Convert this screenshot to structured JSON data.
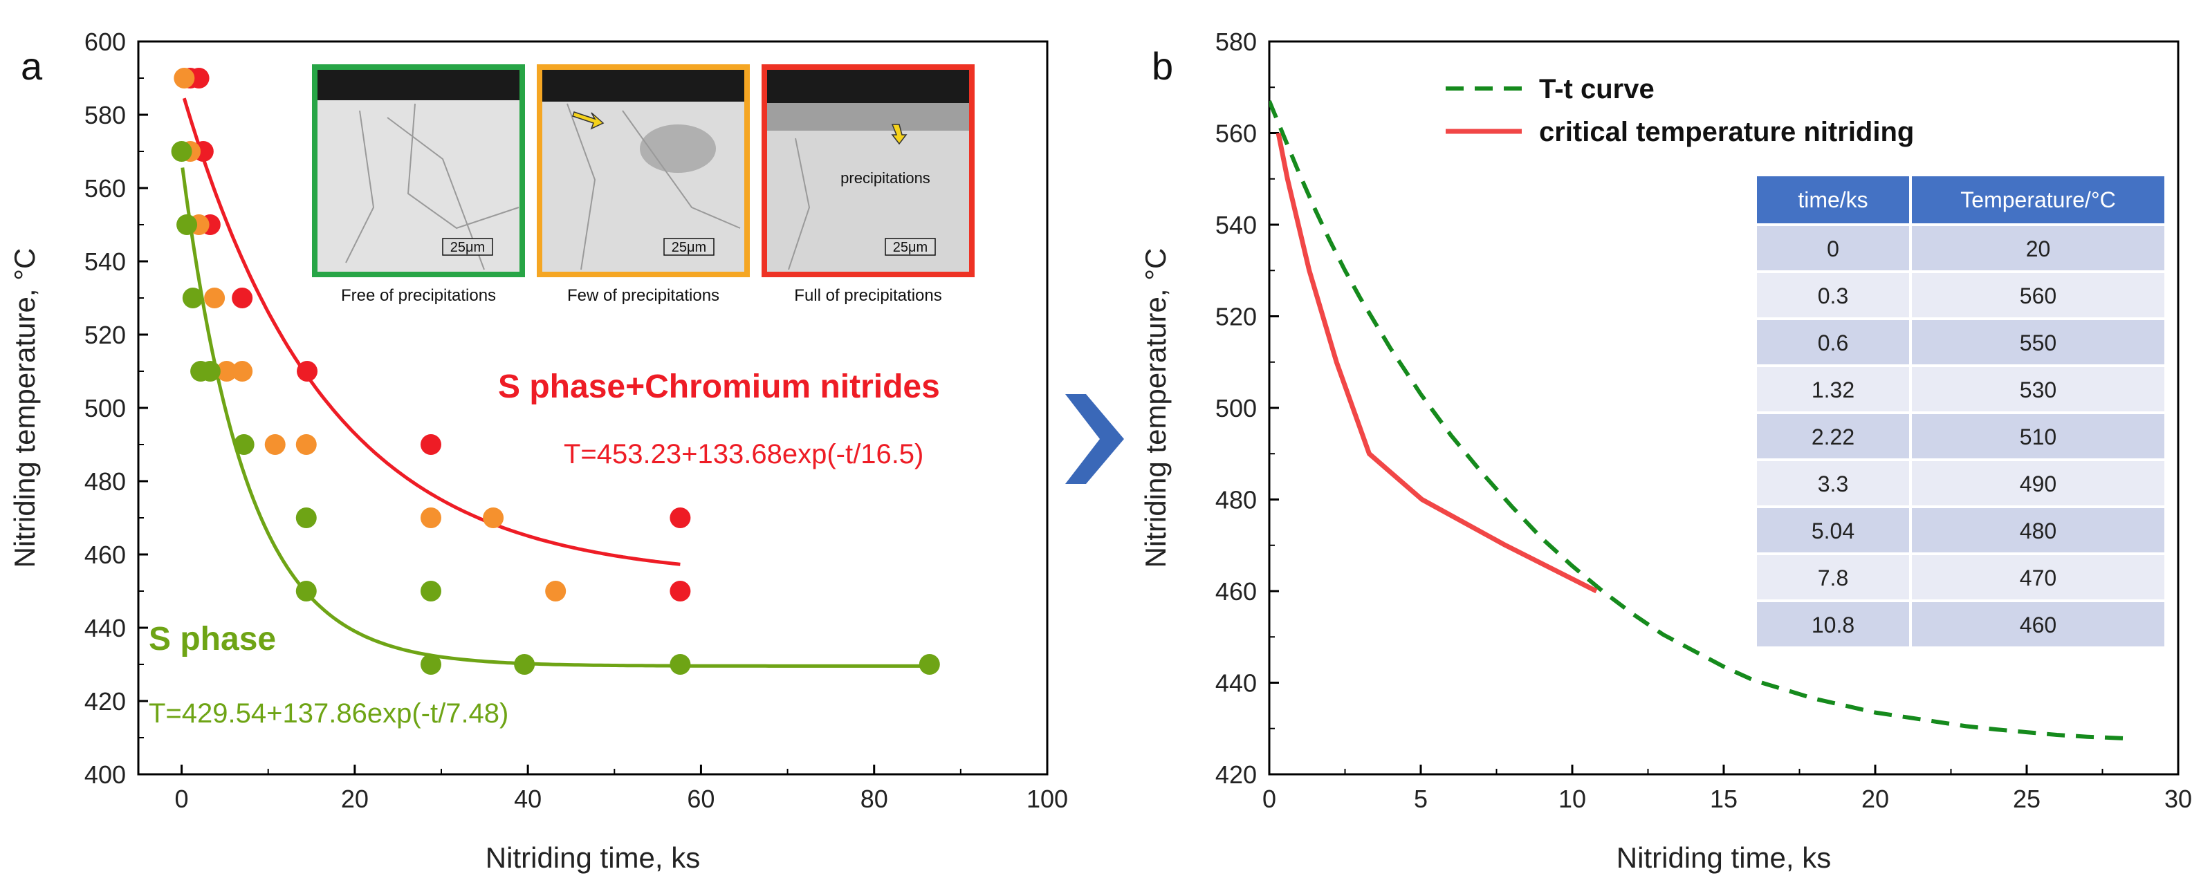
{
  "chart_data": [
    {
      "type": "scatter",
      "panel_label": "a",
      "xlabel": "Nitriding time, ks",
      "ylabel": "Nitriding temperature, °C",
      "xlim": [
        -5,
        100
      ],
      "ylim": [
        400,
        600
      ],
      "xticks": [
        0,
        20,
        40,
        60,
        80,
        100
      ],
      "yticks": [
        400,
        420,
        440,
        460,
        480,
        500,
        520,
        540,
        560,
        580,
        600
      ],
      "colors": {
        "red": "#ee1c25",
        "orange": "#f5912e",
        "green": "#6ea415"
      },
      "series": [
        {
          "name": "Full of precipitations",
          "color": "#ee1c25",
          "points": [
            [
              1,
              590
            ],
            [
              2,
              590
            ],
            [
              2.5,
              570
            ],
            [
              3.3,
              550
            ],
            [
              7,
              530
            ],
            [
              14.5,
              510
            ],
            [
              28.8,
              490
            ],
            [
              57.6,
              470
            ],
            [
              57.6,
              450
            ]
          ]
        },
        {
          "name": "Few of precipitations",
          "color": "#f5912e",
          "points": [
            [
              0.3,
              590
            ],
            [
              1,
              570
            ],
            [
              2,
              550
            ],
            [
              3.8,
              530
            ],
            [
              5.2,
              510
            ],
            [
              7,
              510
            ],
            [
              10.8,
              490
            ],
            [
              14.4,
              490
            ],
            [
              28.8,
              470
            ],
            [
              36,
              470
            ],
            [
              43.2,
              450
            ]
          ]
        },
        {
          "name": "Free of precipitations",
          "color": "#6ea415",
          "points": [
            [
              0,
              570
            ],
            [
              0.6,
              550
            ],
            [
              1.3,
              530
            ],
            [
              2.2,
              510
            ],
            [
              3.3,
              510
            ],
            [
              7.2,
              490
            ],
            [
              14.4,
              470
            ],
            [
              14.4,
              450
            ],
            [
              28.8,
              450
            ],
            [
              28.8,
              430
            ],
            [
              39.6,
              430
            ],
            [
              57.6,
              430
            ],
            [
              86.4,
              430
            ]
          ]
        }
      ],
      "fits": [
        {
          "name": "S phase+Chromium nitrides",
          "equation": "T=453.23+133.68exp(-t/16.5)",
          "a": 453.23,
          "b": 133.68,
          "tau": 16.5,
          "t_range": [
            0.3,
            57.6
          ],
          "color": "#ee1c25"
        },
        {
          "name": "S phase",
          "equation": "T=429.54+137.86exp(-t/7.48)",
          "a": 429.54,
          "b": 137.86,
          "tau": 7.48,
          "t_range": [
            0.1,
            86.4
          ],
          "color": "#6ea415"
        }
      ],
      "inset": {
        "images": [
          {
            "caption": "Free of precipitations",
            "scale": "25μm",
            "border": "#27a546"
          },
          {
            "caption": "Few of precipitations",
            "scale": "25μm",
            "border": "#f5a623"
          },
          {
            "caption": "Full of precipitations",
            "scale": "25μm",
            "border": "#ee3224",
            "note": "precipitations"
          }
        ]
      }
    },
    {
      "type": "line",
      "panel_label": "b",
      "xlabel": "Nitriding time, ks",
      "ylabel": "Nitriding temperature, °C",
      "xlim": [
        0,
        30
      ],
      "ylim": [
        420,
        580
      ],
      "xticks": [
        0,
        5,
        10,
        15,
        20,
        25,
        30
      ],
      "yticks": [
        420,
        440,
        460,
        480,
        500,
        520,
        540,
        560,
        580
      ],
      "series": [
        {
          "name": "T-t curve",
          "style": "dashed",
          "color": "#158a1c",
          "x": [
            0,
            0.5,
            1,
            1.5,
            2,
            2.5,
            3,
            3.5,
            4,
            5,
            6,
            7,
            8,
            9,
            10,
            11,
            12,
            13,
            14,
            15,
            16,
            17,
            18,
            19,
            20,
            21,
            22,
            23,
            24,
            25,
            26,
            27,
            28.4
          ],
          "y": [
            567,
            559,
            551,
            543.5,
            536.5,
            530,
            524,
            518.5,
            513,
            503,
            494,
            486,
            478.5,
            471.5,
            465.5,
            460,
            455,
            450.5,
            447,
            443.5,
            440.5,
            438.5,
            436.5,
            435,
            433.5,
            432.5,
            431.5,
            430.5,
            429.8,
            429.2,
            428.6,
            428.2,
            427.8
          ]
        },
        {
          "name": "critical temperature nitriding",
          "style": "solid",
          "color": "#f14646",
          "x": [
            0.3,
            0.6,
            1.32,
            2.22,
            3.3,
            5.04,
            7.8,
            10.8
          ],
          "y": [
            560,
            550,
            530,
            510,
            490,
            480,
            470,
            460
          ]
        }
      ],
      "table": {
        "headers": [
          "time/ks",
          "Temperature/°C"
        ],
        "rows": [
          [
            "0",
            "20"
          ],
          [
            "0.3",
            "560"
          ],
          [
            "0.6",
            "550"
          ],
          [
            "1.32",
            "530"
          ],
          [
            "2.22",
            "510"
          ],
          [
            "3.3",
            "490"
          ],
          [
            "5.04",
            "480"
          ],
          [
            "7.8",
            "470"
          ],
          [
            "10.8",
            "460"
          ]
        ],
        "header_color": "#4472c4",
        "row_colors": [
          "#cfd5ea",
          "#e9ebf5"
        ]
      }
    }
  ]
}
